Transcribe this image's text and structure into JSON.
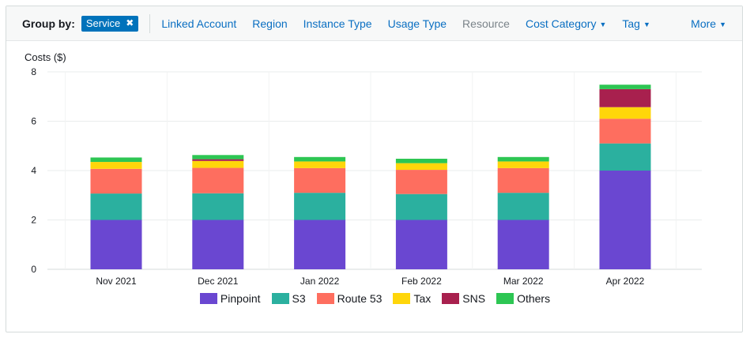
{
  "toolbar": {
    "group_by_label": "Group by:",
    "selected_chip": "Service",
    "dimensions": [
      {
        "label": "Linked Account",
        "enabled": true,
        "dropdown": false
      },
      {
        "label": "Region",
        "enabled": true,
        "dropdown": false
      },
      {
        "label": "Instance Type",
        "enabled": true,
        "dropdown": false
      },
      {
        "label": "Usage Type",
        "enabled": true,
        "dropdown": false
      },
      {
        "label": "Resource",
        "enabled": false,
        "dropdown": false
      },
      {
        "label": "Cost Category",
        "enabled": true,
        "dropdown": true
      },
      {
        "label": "Tag",
        "enabled": true,
        "dropdown": true
      }
    ],
    "more_label": "More"
  },
  "chart_data": {
    "type": "bar",
    "stacked": true,
    "title": "",
    "ylabel": "Costs ($)",
    "xlabel": "",
    "ylim": [
      0,
      8
    ],
    "yticks": [
      "0",
      "2",
      "4",
      "6",
      "8"
    ],
    "grid": true,
    "legend_position": "bottom",
    "categories": [
      "Nov 2021",
      "Dec 2021",
      "Jan 2022",
      "Feb 2022",
      "Mar 2022",
      "Apr 2022"
    ],
    "series": [
      {
        "name": "Pinpoint",
        "color": "#6a47d1",
        "values": [
          2.0,
          2.0,
          2.0,
          2.0,
          2.0,
          4.0
        ]
      },
      {
        "name": "S3",
        "color": "#2bb09f",
        "values": [
          1.07,
          1.08,
          1.1,
          1.05,
          1.1,
          1.1
        ]
      },
      {
        "name": "Route 53",
        "color": "#fe6e5f",
        "values": [
          1.0,
          1.03,
          1.0,
          0.98,
          1.0,
          1.0
        ]
      },
      {
        "name": "Tax",
        "color": "#ffd60a",
        "values": [
          0.28,
          0.28,
          0.27,
          0.27,
          0.27,
          0.47
        ]
      },
      {
        "name": "SNS",
        "color": "#a8204e",
        "values": [
          0.0,
          0.07,
          0.0,
          0.0,
          0.0,
          0.73
        ]
      },
      {
        "name": "Others",
        "color": "#2dc653",
        "values": [
          0.18,
          0.17,
          0.18,
          0.18,
          0.18,
          0.18
        ]
      }
    ]
  }
}
